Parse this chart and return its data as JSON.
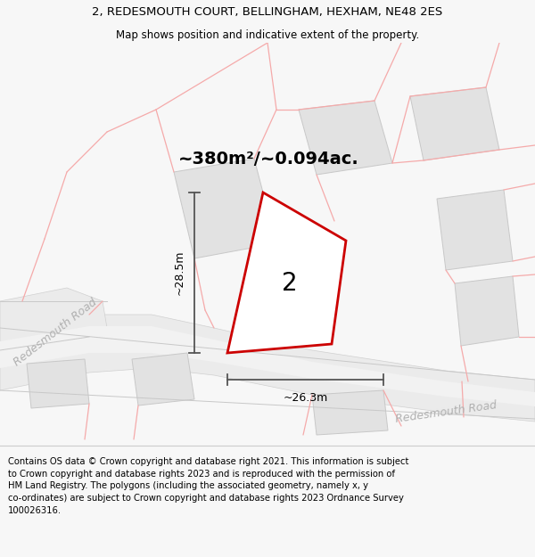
{
  "title_line1": "2, REDESMOUTH COURT, BELLINGHAM, HEXHAM, NE48 2ES",
  "title_line2": "Map shows position and indicative extent of the property.",
  "footer": "Contains OS data © Crown copyright and database right 2021. This information is subject\nto Crown copyright and database rights 2023 and is reproduced with the permission of\nHM Land Registry. The polygons (including the associated geometry, namely x, y\nco-ordinates) are subject to Crown copyright and database rights 2023 Ordnance Survey\n100026316.",
  "area_label": "~380m²/~0.094ac.",
  "plot_number": "2",
  "dim_vertical": "~28.5m",
  "dim_horizontal": "~26.3m",
  "road_label_left": "Redesmouth Road",
  "road_label_right": "Redesmouth Road",
  "bg_color": "#f7f7f7",
  "map_bg": "#ffffff",
  "plot_fill": "#ffffff",
  "plot_edge": "#cc0000",
  "building_fill": "#e2e2e2",
  "building_edge": "#c8c8c8",
  "road_fill": "#ebebeb",
  "road_edge": "#d0d0d0",
  "pink_line": "#f5aaaa",
  "dim_color": "#555555",
  "road_label_color": "#b0b0b0",
  "title_fontsize": 9.5,
  "subtitle_fontsize": 8.5,
  "footer_fontsize": 7.2,
  "area_fontsize": 14,
  "plot_num_fontsize": 20,
  "dim_fontsize": 9,
  "road_label_fontsize": 9
}
